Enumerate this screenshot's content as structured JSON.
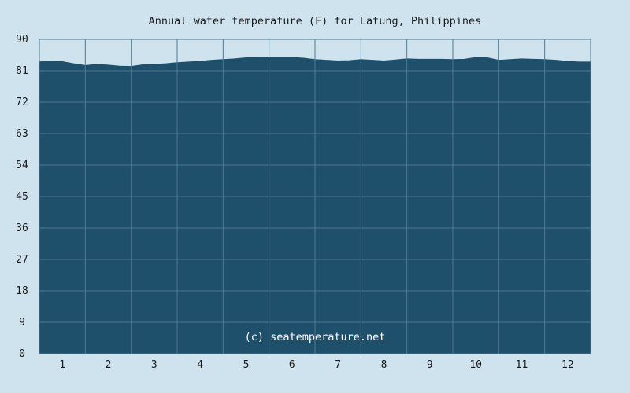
{
  "chart_data": {
    "type": "area",
    "title": "Annual water temperature (F) for Latung, Philippines",
    "xlabel": "",
    "ylabel": "",
    "x_ticks": [
      "1",
      "2",
      "3",
      "4",
      "5",
      "6",
      "7",
      "8",
      "9",
      "10",
      "11",
      "12"
    ],
    "y_ticks": [
      0,
      9,
      18,
      27,
      36,
      45,
      54,
      63,
      72,
      81,
      90
    ],
    "ylim": [
      0,
      90
    ],
    "xlim": [
      0.5,
      12.5
    ],
    "grid": true,
    "watermark": "(c) seatemperature.net",
    "colors": {
      "background": "#cfe3ef",
      "plot_background": "#cfe3ef",
      "fill": "#1e4f6b",
      "grid": "#4f7a92"
    },
    "series": [
      {
        "x": [
          0.5,
          0.75,
          1.0,
          1.25,
          1.5,
          1.75,
          2.0,
          2.25,
          2.5,
          2.75,
          3.0,
          3.25,
          3.5,
          3.75,
          4.0,
          4.25,
          4.5,
          4.75,
          5.0,
          5.25,
          5.5,
          5.75,
          6.0,
          6.25,
          6.5,
          6.75,
          7.0,
          7.25,
          7.5,
          7.75,
          8.0,
          8.25,
          8.5,
          8.75,
          9.0,
          9.25,
          9.5,
          9.75,
          10.0,
          10.25,
          10.5,
          10.75,
          11.0,
          11.25,
          11.5,
          11.75,
          12.0,
          12.25,
          12.5
        ],
        "values": [
          83.5,
          83.8,
          83.6,
          83.0,
          82.5,
          82.8,
          82.6,
          82.3,
          82.2,
          82.7,
          82.8,
          83.0,
          83.3,
          83.5,
          83.7,
          84.0,
          84.2,
          84.4,
          84.7,
          84.8,
          84.8,
          84.8,
          84.8,
          84.6,
          84.2,
          84.0,
          83.8,
          83.9,
          84.2,
          84.0,
          83.8,
          84.1,
          84.4,
          84.3,
          84.3,
          84.3,
          84.2,
          84.3,
          84.8,
          84.7,
          84.0,
          84.2,
          84.4,
          84.3,
          84.2,
          84.0,
          83.7,
          83.5,
          83.5
        ]
      }
    ]
  }
}
